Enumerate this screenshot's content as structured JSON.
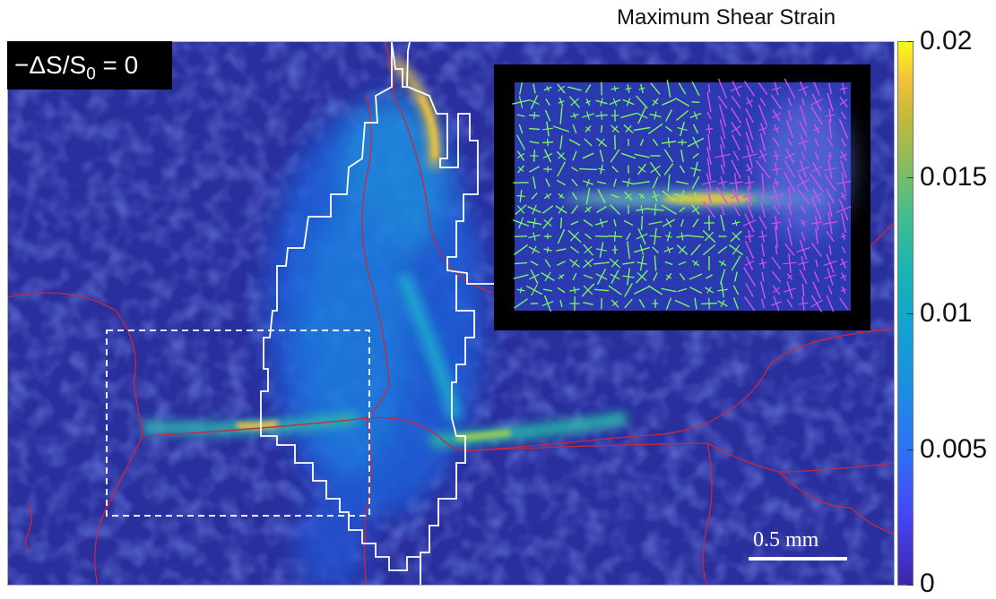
{
  "chart_data": {
    "type": "heatmap",
    "title": "",
    "colorbar": {
      "label": "Maximum Shear Strain",
      "min": 0,
      "max": 0.02,
      "ticks": [
        "0.02",
        "0.015",
        "0.01",
        "0.005",
        "0"
      ],
      "tick_values": [
        0.02,
        0.015,
        0.01,
        0.005,
        0
      ],
      "colormap": "parula"
    },
    "annotation": {
      "label_prefix": "−ΔS/S",
      "label_sub": "0",
      "label_suffix": " = 0"
    },
    "scale_bar": {
      "label": "0.5 mm",
      "length_mm": 0.5
    },
    "features": {
      "shear_band_peak_strain": 0.02,
      "background_strain": 0.002,
      "grain_boundary_color": "#c8283c",
      "outline_color": "#ffffff",
      "inset_vector_colors": [
        "#7cf562",
        "#d64ff2"
      ]
    }
  }
}
